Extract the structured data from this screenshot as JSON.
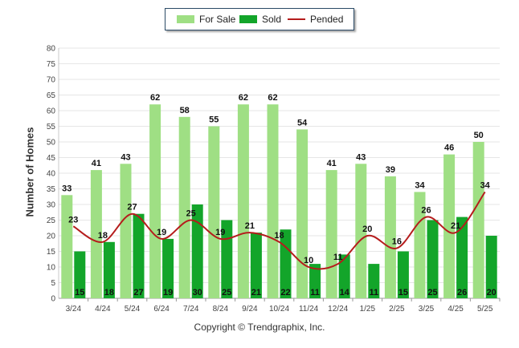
{
  "chart_data": {
    "type": "bar",
    "categories": [
      "3/24",
      "4/24",
      "5/24",
      "6/24",
      "7/24",
      "8/24",
      "9/24",
      "10/24",
      "11/24",
      "12/24",
      "1/25",
      "2/25",
      "3/25",
      "4/25",
      "5/25"
    ],
    "series": [
      {
        "name": "For Sale",
        "type": "bar",
        "color": "#9fdf84",
        "values": [
          33,
          41,
          43,
          62,
          58,
          55,
          62,
          62,
          54,
          41,
          43,
          39,
          34,
          46,
          50
        ]
      },
      {
        "name": "Sold",
        "type": "bar",
        "color": "#13a52a",
        "values": [
          15,
          18,
          27,
          19,
          30,
          25,
          21,
          22,
          11,
          14,
          11,
          15,
          25,
          26,
          20
        ]
      },
      {
        "name": "Pended",
        "type": "line",
        "color": "#b51c1c",
        "values": [
          23,
          18,
          27,
          19,
          25,
          19,
          21,
          18,
          10,
          11,
          20,
          16,
          26,
          21,
          34
        ]
      }
    ],
    "ylabel": "Number of Homes",
    "ylim": [
      0,
      80
    ],
    "yticks": [
      0,
      5,
      10,
      15,
      20,
      25,
      30,
      35,
      40,
      45,
      50,
      55,
      60,
      65,
      70,
      75,
      80
    ],
    "grid": true,
    "legend_position": "top-center"
  },
  "legend": {
    "for_sale": "For Sale",
    "sold": "Sold",
    "pended": "Pended"
  },
  "copyright": "Copyright © Trendgraphix, Inc."
}
